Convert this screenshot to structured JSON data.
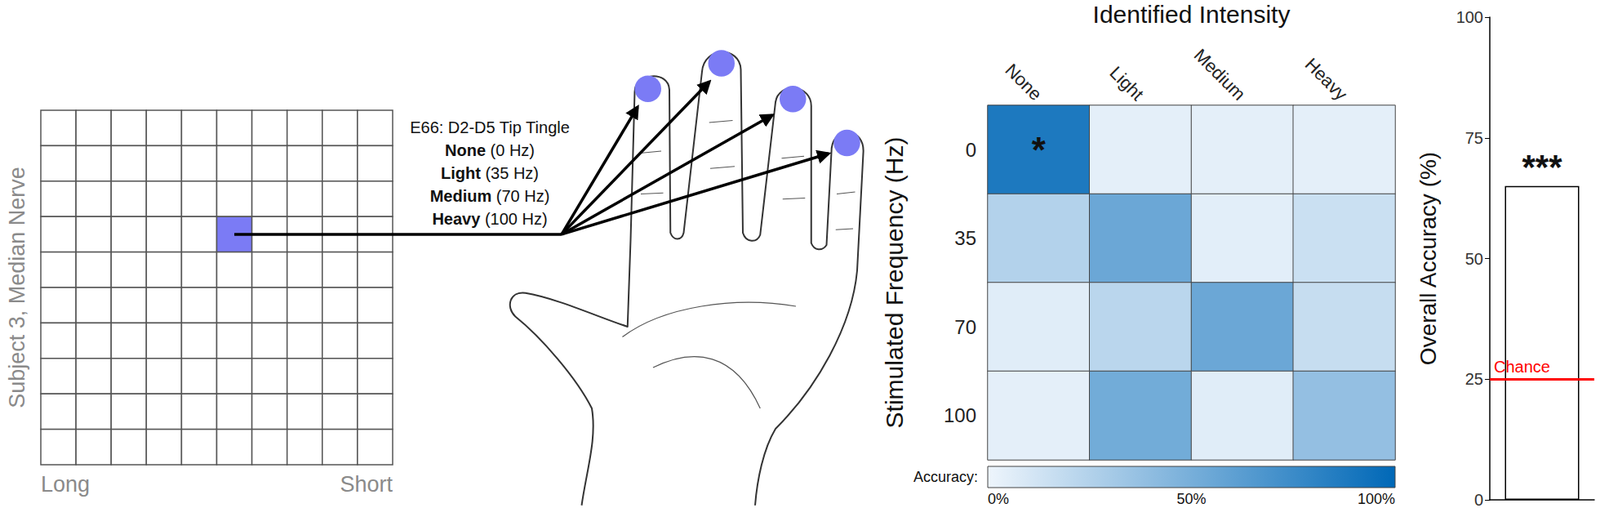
{
  "diagram": {
    "grid": {
      "label": "Subject 3, Median Nerve",
      "rows": 10,
      "cols": 10,
      "highlight": {
        "row": 3,
        "col": 5
      },
      "x_left": "Long",
      "x_right": "Short"
    },
    "electrode": {
      "title": "E66: D2-D5 Tip Tingle",
      "levels": [
        {
          "name": "None",
          "detail": "(0 Hz)"
        },
        {
          "name": "Light",
          "detail": "(35 Hz)"
        },
        {
          "name": "Medium",
          "detail": "(70 Hz)"
        },
        {
          "name": "Heavy",
          "detail": "(100 Hz)"
        }
      ]
    }
  },
  "chart_data": [
    {
      "type": "heatmap",
      "title": "Identified Intensity",
      "y_label": "Stimulated Frequency (Hz)",
      "x": [
        "None",
        "Light",
        "Medium",
        "Heavy"
      ],
      "y": [
        0,
        35,
        70,
        100
      ],
      "cells": [
        [
          88,
          4,
          4,
          4
        ],
        [
          25,
          55,
          5,
          15
        ],
        [
          6,
          22,
          55,
          17
        ],
        [
          4,
          52,
          6,
          38
        ]
      ],
      "colorbar": {
        "label": "Accuracy:",
        "range": [
          0,
          100
        ],
        "ticks": [
          {
            "value": 0,
            "label": "0%"
          },
          {
            "value": 50,
            "label": "50%"
          },
          {
            "value": 100,
            "label": "100%"
          }
        ],
        "colors": [
          "#eef5fc",
          "#0068b7"
        ]
      },
      "annotations": [
        {
          "x": "None",
          "y": 0,
          "text": "*"
        }
      ]
    },
    {
      "type": "bar",
      "y_label": "Overall Accuracy (%)",
      "categories": [
        null
      ],
      "values": [
        65
      ],
      "color": "#ffffff",
      "ylim": [
        0,
        100
      ],
      "yticks": [
        0,
        25,
        50,
        75,
        100
      ],
      "grid": false,
      "annotations": [
        "***"
      ],
      "reference_lines": [
        {
          "value": 25,
          "label": "Chance",
          "color": "#ff0000"
        }
      ]
    }
  ]
}
